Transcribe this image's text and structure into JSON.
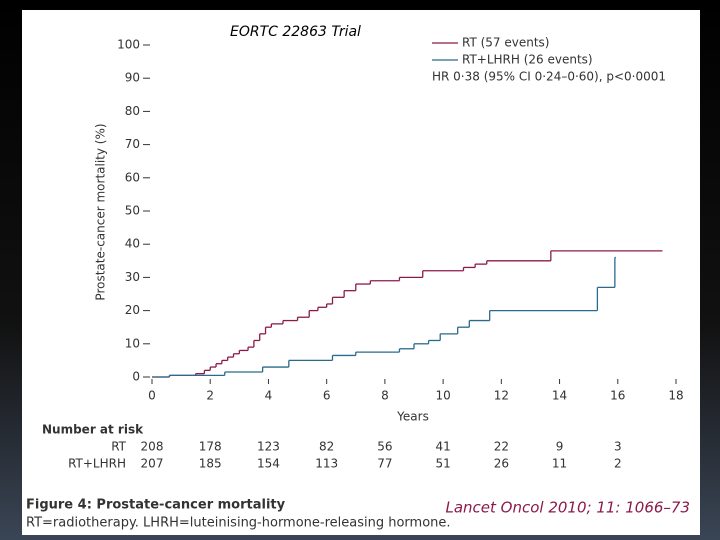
{
  "chart_data": {
    "type": "step",
    "title": "EORTC 22863 Trial",
    "y_label": "Prostate-cancer mortality (%)",
    "x_label": "Years",
    "xlim": [
      0,
      18
    ],
    "xticks": [
      0,
      2,
      4,
      6,
      8,
      10,
      12,
      14,
      16,
      18
    ],
    "ylim": [
      0,
      100
    ],
    "yticks": [
      0,
      10,
      20,
      30,
      40,
      50,
      60,
      70,
      80,
      90,
      100
    ],
    "series": [
      {
        "name": "RT (57 events)",
        "color": "#8b1a4a",
        "x": [
          0,
          0.6,
          1.5,
          1.8,
          2.0,
          2.2,
          2.4,
          2.6,
          2.8,
          3.0,
          3.3,
          3.5,
          3.7,
          3.9,
          4.1,
          4.5,
          5.0,
          5.4,
          5.7,
          6.0,
          6.2,
          6.6,
          7.0,
          7.5,
          8.5,
          9.3,
          10.7,
          11.1,
          11.5,
          13.7,
          17.5
        ],
        "values": [
          0,
          0.5,
          1,
          2,
          3,
          4,
          5,
          6,
          7,
          8,
          9,
          11,
          13,
          15,
          16,
          17,
          18,
          20,
          21,
          22,
          24,
          26,
          28,
          29,
          30,
          32,
          33,
          34,
          35,
          38,
          38
        ]
      },
      {
        "name": "RT+LHRH (26 events)",
        "color": "#2a6a8a",
        "x": [
          0,
          0.6,
          2.5,
          3.8,
          4.7,
          6.2,
          7.0,
          8.5,
          9.0,
          9.5,
          9.9,
          10.5,
          10.9,
          11.6,
          15.3,
          15.9
        ],
        "values": [
          0,
          0.5,
          1.5,
          3,
          5,
          6.5,
          7.5,
          8.5,
          10,
          11,
          13,
          15,
          17,
          20,
          27,
          36
        ]
      }
    ],
    "annotation": "HR 0·38 (95% CI 0·24–0·60), p<0·0001",
    "number_at_risk": {
      "title": "Number at risk",
      "rows": [
        {
          "label": "RT",
          "values": [
            208,
            178,
            123,
            82,
            56,
            41,
            22,
            9,
            3
          ]
        },
        {
          "label": "RT+LHRH",
          "values": [
            207,
            185,
            154,
            113,
            77,
            51,
            26,
            11,
            2
          ]
        }
      ]
    },
    "caption_title": "Figure 4: Prostate-cancer mortality",
    "caption_text": "RT=radiotherapy. LHRH=luteinising-hormone-releasing hormone.",
    "citation": "Lancet Oncol 2010; 11: 1066–73"
  }
}
